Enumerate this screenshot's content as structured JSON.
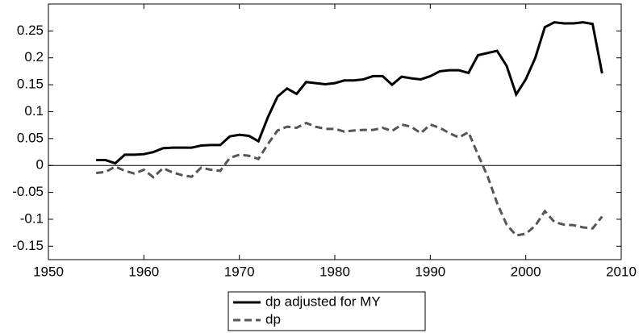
{
  "chart_data": {
    "type": "line",
    "x": [
      1955,
      1956,
      1957,
      1958,
      1959,
      1960,
      1961,
      1962,
      1963,
      1964,
      1965,
      1966,
      1967,
      1968,
      1969,
      1970,
      1971,
      1972,
      1973,
      1974,
      1975,
      1976,
      1977,
      1978,
      1979,
      1980,
      1981,
      1982,
      1983,
      1984,
      1985,
      1986,
      1987,
      1988,
      1989,
      1990,
      1991,
      1992,
      1993,
      1994,
      1995,
      1996,
      1997,
      1998,
      1999,
      2000,
      2001,
      2002,
      2003,
      2004,
      2005,
      2006,
      2007,
      2008
    ],
    "series": [
      {
        "name": "dp adjusted for MY",
        "color": "#000000",
        "dash": "solid",
        "values": [
          0.01,
          0.01,
          0.004,
          0.02,
          0.02,
          0.021,
          0.025,
          0.032,
          0.033,
          0.033,
          0.033,
          0.037,
          0.038,
          0.038,
          0.054,
          0.057,
          0.055,
          0.045,
          0.09,
          0.128,
          0.143,
          0.133,
          0.155,
          0.153,
          0.151,
          0.153,
          0.158,
          0.158,
          0.16,
          0.166,
          0.166,
          0.15,
          0.165,
          0.162,
          0.16,
          0.166,
          0.175,
          0.177,
          0.177,
          0.172,
          0.205,
          0.209,
          0.213,
          0.185,
          0.132,
          0.16,
          0.2,
          0.257,
          0.266,
          0.264,
          0.264,
          0.266,
          0.263,
          0.171
        ]
      },
      {
        "name": "dp",
        "color": "#555555",
        "dash": "dashed",
        "values": [
          -0.014,
          -0.012,
          -0.002,
          -0.01,
          -0.015,
          -0.008,
          -0.022,
          -0.005,
          -0.013,
          -0.018,
          -0.021,
          -0.004,
          -0.008,
          -0.01,
          0.014,
          0.02,
          0.018,
          0.012,
          0.04,
          0.065,
          0.072,
          0.07,
          0.079,
          0.072,
          0.068,
          0.068,
          0.063,
          0.065,
          0.066,
          0.066,
          0.07,
          0.064,
          0.076,
          0.072,
          0.06,
          0.076,
          0.07,
          0.06,
          0.052,
          0.062,
          0.02,
          -0.02,
          -0.07,
          -0.11,
          -0.13,
          -0.127,
          -0.112,
          -0.085,
          -0.105,
          -0.11,
          -0.111,
          -0.115,
          -0.117,
          -0.095
        ]
      }
    ],
    "xlim": [
      1950,
      2010
    ],
    "xticks": [
      1950,
      1960,
      1970,
      1980,
      1990,
      2000,
      2010
    ],
    "ylim": [
      -0.175,
      0.3
    ],
    "yticks": [
      -0.15,
      -0.1,
      -0.05,
      0,
      0.05,
      0.1,
      0.15,
      0.2,
      0.25
    ],
    "reference_line": 0,
    "legend": "below",
    "grid": false
  }
}
